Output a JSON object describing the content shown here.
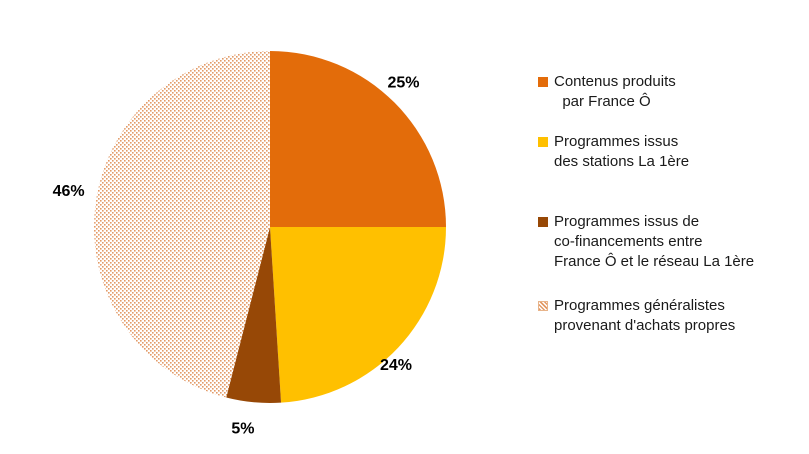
{
  "chart_data": {
    "type": "pie",
    "slices": [
      {
        "label": "Contenus produits\n  par France Ô",
        "value": 25,
        "value_label": "25%",
        "color": "#E36C0A",
        "pattern": false
      },
      {
        "label": "Programmes issus\ndes stations La 1ère",
        "value": 24,
        "value_label": "24%",
        "color": "#FFC000",
        "pattern": false
      },
      {
        "label": "Programmes issus de\nco-financements entre\nFrance Ô et le réseau La 1ère",
        "value": 5,
        "value_label": "5%",
        "color": "#974806",
        "pattern": false
      },
      {
        "label": "Programmes généralistes\nprovenant d'achats propres",
        "value": 46,
        "value_label": "46%",
        "color": "#E8A77A",
        "pattern": true
      }
    ],
    "legend_position": "right"
  }
}
